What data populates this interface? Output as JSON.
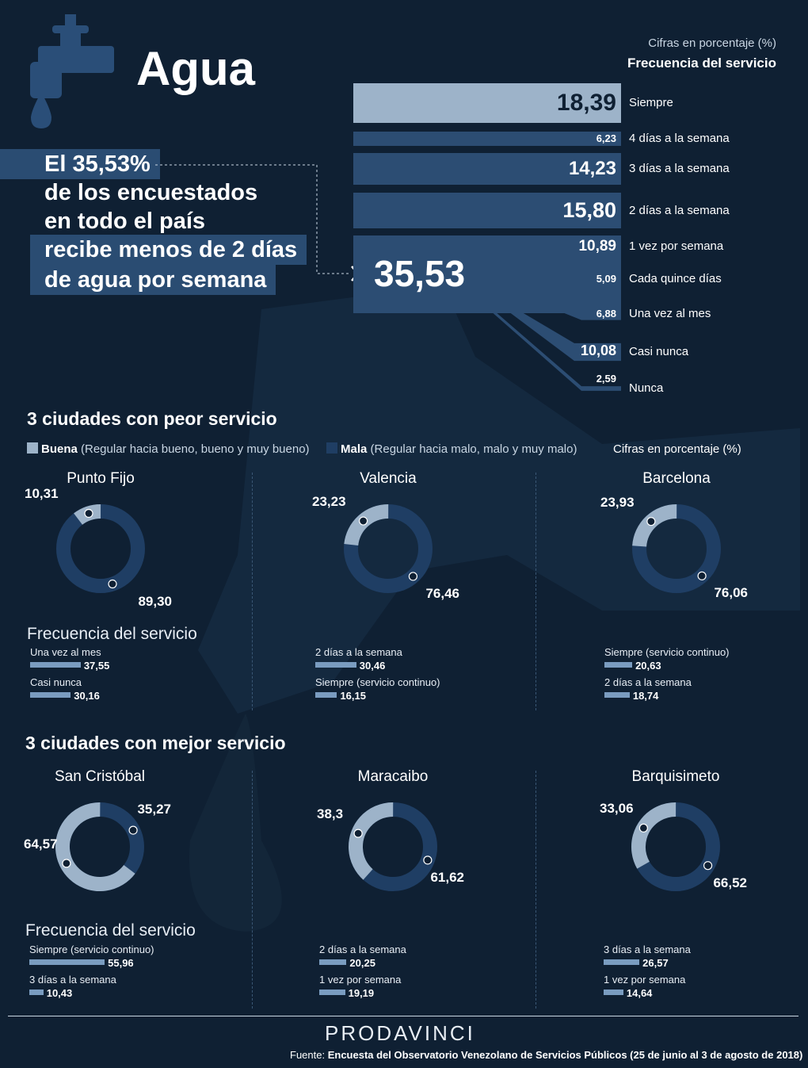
{
  "header": {
    "title": "Agua",
    "note": "Cifras en porcentaje (%)",
    "freq_title": "Frecuencia del servicio"
  },
  "headline": [
    "El 35,53%",
    "de los encuestados",
    "en todo el país",
    "recibe menos de 2 días",
    "de agua por semana"
  ],
  "chart_data": [
    {
      "type": "bar",
      "title": "Frecuencia del servicio",
      "categories": [
        "Siempre",
        "4 días a la semana",
        "3 días a la semana",
        "2 días a la semana",
        "1 vez por semana",
        "Cada quince días",
        "Una vez al mes",
        "Casi nunca",
        "Nunca"
      ],
      "values": [
        18.39,
        6.23,
        14.23,
        15.8,
        10.89,
        5.09,
        6.88,
        10.08,
        2.59
      ],
      "value_labels": [
        "18,39",
        "6,23",
        "14,23",
        "15,80",
        "10,89",
        "5,09",
        "6,88",
        "10,08",
        "2,59"
      ],
      "total_label": "35,53",
      "total_value": 35.53
    },
    {
      "type": "pie",
      "title": "Punto Fijo",
      "categories": [
        "Buena",
        "Mala"
      ],
      "values": [
        10.31,
        89.3
      ],
      "value_labels": [
        "10,31",
        "89,30"
      ]
    },
    {
      "type": "pie",
      "title": "Valencia",
      "categories": [
        "Buena",
        "Mala"
      ],
      "values": [
        23.23,
        76.46
      ],
      "value_labels": [
        "23,23",
        "76,46"
      ]
    },
    {
      "type": "pie",
      "title": "Barcelona",
      "categories": [
        "Buena",
        "Mala"
      ],
      "values": [
        23.93,
        76.06
      ],
      "value_labels": [
        "23,93",
        "76,06"
      ]
    },
    {
      "type": "pie",
      "title": "San Cristóbal",
      "categories": [
        "Buena",
        "Mala"
      ],
      "values": [
        64.57,
        35.27
      ],
      "value_labels": [
        "64,57",
        "35,27"
      ]
    },
    {
      "type": "pie",
      "title": "Maracaibo",
      "categories": [
        "Buena",
        "Mala"
      ],
      "values": [
        38.3,
        61.62
      ],
      "value_labels": [
        "38,3",
        "61,62"
      ]
    },
    {
      "type": "pie",
      "title": "Barquisimeto",
      "categories": [
        "Buena",
        "Mala"
      ],
      "values": [
        33.06,
        66.52
      ],
      "value_labels": [
        "33,06",
        "66,52"
      ]
    }
  ],
  "worst": {
    "title": "3 ciudades con peor servicio",
    "legend_good_bold": "Buena",
    "legend_good_rest": " (Regular hacia bueno, bueno y muy bueno)",
    "legend_bad_bold": "Mala",
    "legend_bad_rest": " (Regular hacia malo, malo y muy malo)",
    "note": "Cifras en porcentaje (%)",
    "freq_head": "Frecuencia del servicio",
    "cities": [
      {
        "name": "Punto Fijo",
        "good": "10,31",
        "bad": "89,30",
        "freq": [
          {
            "label": "Una vez al mes",
            "value": 37.55,
            "value_label": "37,55"
          },
          {
            "label": "Casi nunca",
            "value": 30.16,
            "value_label": "30,16"
          }
        ]
      },
      {
        "name": "Valencia",
        "good": "23,23",
        "bad": "76,46",
        "freq": [
          {
            "label": "2 días a la semana",
            "value": 30.46,
            "value_label": "30,46"
          },
          {
            "label": "Siempre (servicio continuo)",
            "value": 16.15,
            "value_label": "16,15"
          }
        ]
      },
      {
        "name": "Barcelona",
        "good": "23,93",
        "bad": "76,06",
        "freq": [
          {
            "label": "Siempre (servicio continuo)",
            "value": 20.63,
            "value_label": "20,63"
          },
          {
            "label": "2 días a la semana",
            "value": 18.74,
            "value_label": "18,74"
          }
        ]
      }
    ]
  },
  "best": {
    "title": "3 ciudades con mejor servicio",
    "freq_head": "Frecuencia del servicio",
    "cities": [
      {
        "name": "San Cristóbal",
        "good": "64,57",
        "bad": "35,27",
        "freq": [
          {
            "label": "Siempre (servicio continuo)",
            "value": 55.96,
            "value_label": "55,96"
          },
          {
            "label": "3 días a la semana",
            "value": 10.43,
            "value_label": "10,43"
          }
        ]
      },
      {
        "name": "Maracaibo",
        "good": "38,3",
        "bad": "61,62",
        "freq": [
          {
            "label": "2 días a la semana",
            "value": 20.25,
            "value_label": "20,25"
          },
          {
            "label": "1 vez por semana",
            "value": 19.19,
            "value_label": "19,19"
          }
        ]
      },
      {
        "name": "Barquisimeto",
        "good": "33,06",
        "bad": "66,52",
        "freq": [
          {
            "label": "3 días a la semana",
            "value": 26.57,
            "value_label": "26,57"
          },
          {
            "label": "1 vez por semana",
            "value": 14.64,
            "value_label": "14,64"
          }
        ]
      }
    ]
  },
  "footer": {
    "brand": "PRODAVINCI",
    "source_prefix": "Fuente: ",
    "source_text": "Encuesta del Observatorio Venezolano de Servicios Públicos (25 de junio al 3 de agosto de 2018)"
  },
  "colors": {
    "background": "#0f2033",
    "good": "#9db3c9",
    "bad": "#1f3e64",
    "bar_dark": "#2c4d73",
    "bar_top": "#9db3c9",
    "mini_bar": "#7a9cc0"
  },
  "icons": [
    "faucet-icon",
    "water-drop-icon",
    "arrow-right-icon"
  ]
}
